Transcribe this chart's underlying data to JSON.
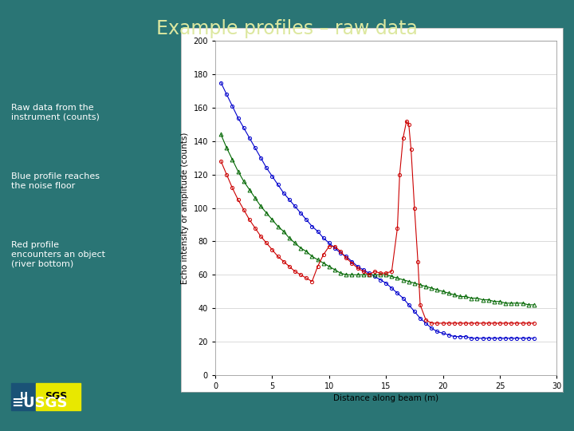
{
  "title": "Example profiles – raw data",
  "title_color": "#dde8a0",
  "bg_color": "#2a7575",
  "plot_bg": "#ffffff",
  "ylabel": "Echo intensity or amplitude (counts)",
  "xlabel": "Distance along beam (m)",
  "xlim": [
    0,
    30
  ],
  "ylim": [
    0,
    200
  ],
  "xticks": [
    0,
    5,
    10,
    15,
    20,
    25,
    30
  ],
  "yticks": [
    0,
    20,
    40,
    60,
    80,
    100,
    120,
    140,
    160,
    180,
    200
  ],
  "annotations": [
    "Raw data from the\ninstrument (counts)",
    "Blue profile reaches\nthe noise floor",
    "Red profile\nencounters an object\n(river bottom)"
  ],
  "blue_x": [
    0.5,
    1,
    1.5,
    2,
    2.5,
    3,
    3.5,
    4,
    4.5,
    5,
    5.5,
    6,
    6.5,
    7,
    7.5,
    8,
    8.5,
    9,
    9.5,
    10,
    10.5,
    11,
    11.5,
    12,
    12.5,
    13,
    13.5,
    14,
    14.5,
    15,
    15.5,
    16,
    16.5,
    17,
    17.5,
    18,
    18.5,
    19,
    19.5,
    20,
    20.5,
    21,
    21.5,
    22,
    22.5,
    23,
    23.5,
    24,
    24.5,
    25,
    25.5,
    26,
    26.5,
    27,
    27.5,
    28
  ],
  "blue_y": [
    175,
    168,
    161,
    154,
    148,
    142,
    136,
    130,
    124,
    119,
    114,
    109,
    105,
    101,
    97,
    93,
    89,
    86,
    82,
    79,
    76,
    73,
    71,
    68,
    65,
    63,
    61,
    59,
    57,
    55,
    52,
    49,
    46,
    42,
    38,
    34,
    31,
    28,
    26,
    25,
    24,
    23,
    23,
    23,
    22,
    22,
    22,
    22,
    22,
    22,
    22,
    22,
    22,
    22,
    22,
    22
  ],
  "green_x": [
    0.5,
    1,
    1.5,
    2,
    2.5,
    3,
    3.5,
    4,
    4.5,
    5,
    5.5,
    6,
    6.5,
    7,
    7.5,
    8,
    8.5,
    9,
    9.5,
    10,
    10.5,
    11,
    11.5,
    12,
    12.5,
    13,
    13.5,
    14,
    14.5,
    15,
    15.5,
    16,
    16.5,
    17,
    17.5,
    18,
    18.5,
    19,
    19.5,
    20,
    20.5,
    21,
    21.5,
    22,
    22.5,
    23,
    23.5,
    24,
    24.5,
    25,
    25.5,
    26,
    26.5,
    27,
    27.5,
    28
  ],
  "green_y": [
    144,
    136,
    129,
    122,
    116,
    111,
    106,
    101,
    97,
    93,
    89,
    86,
    82,
    79,
    76,
    74,
    71,
    69,
    67,
    65,
    63,
    61,
    60,
    60,
    60,
    60,
    60,
    60,
    60,
    60,
    59,
    58,
    57,
    56,
    55,
    54,
    53,
    52,
    51,
    50,
    49,
    48,
    47,
    47,
    46,
    46,
    45,
    45,
    44,
    44,
    43,
    43,
    43,
    43,
    42,
    42
  ],
  "red_x": [
    0.5,
    1,
    1.5,
    2,
    2.5,
    3,
    3.5,
    4,
    4.5,
    5,
    5.5,
    6,
    6.5,
    7,
    7.5,
    8,
    8.5,
    9,
    9.5,
    10,
    10.5,
    11,
    11.5,
    12,
    12.5,
    13,
    13.5,
    14,
    14.5,
    15,
    15.5,
    16,
    16.2,
    16.5,
    16.8,
    17,
    17.2,
    17.5,
    17.8,
    18,
    18.5,
    19,
    19.5,
    20,
    20.5,
    21,
    21.5,
    22,
    22.5,
    23,
    23.5,
    24,
    24.5,
    25,
    25.5,
    26,
    26.5,
    27,
    27.5,
    28
  ],
  "red_y": [
    128,
    120,
    112,
    105,
    99,
    93,
    88,
    83,
    79,
    75,
    71,
    68,
    65,
    62,
    60,
    58,
    56,
    65,
    72,
    77,
    77,
    74,
    70,
    67,
    64,
    62,
    60,
    62,
    61,
    61,
    62,
    88,
    120,
    142,
    152,
    150,
    135,
    100,
    68,
    42,
    33,
    31,
    31,
    31,
    31,
    31,
    31,
    31,
    31,
    31,
    31,
    31,
    31,
    31,
    31,
    31,
    31,
    31,
    31,
    31
  ],
  "blue_color": "#0000cc",
  "green_color": "#006600",
  "red_color": "#cc0000",
  "ann_fontsize": 8,
  "title_fontsize": 17,
  "axis_fontsize": 7.5,
  "tick_fontsize": 7
}
